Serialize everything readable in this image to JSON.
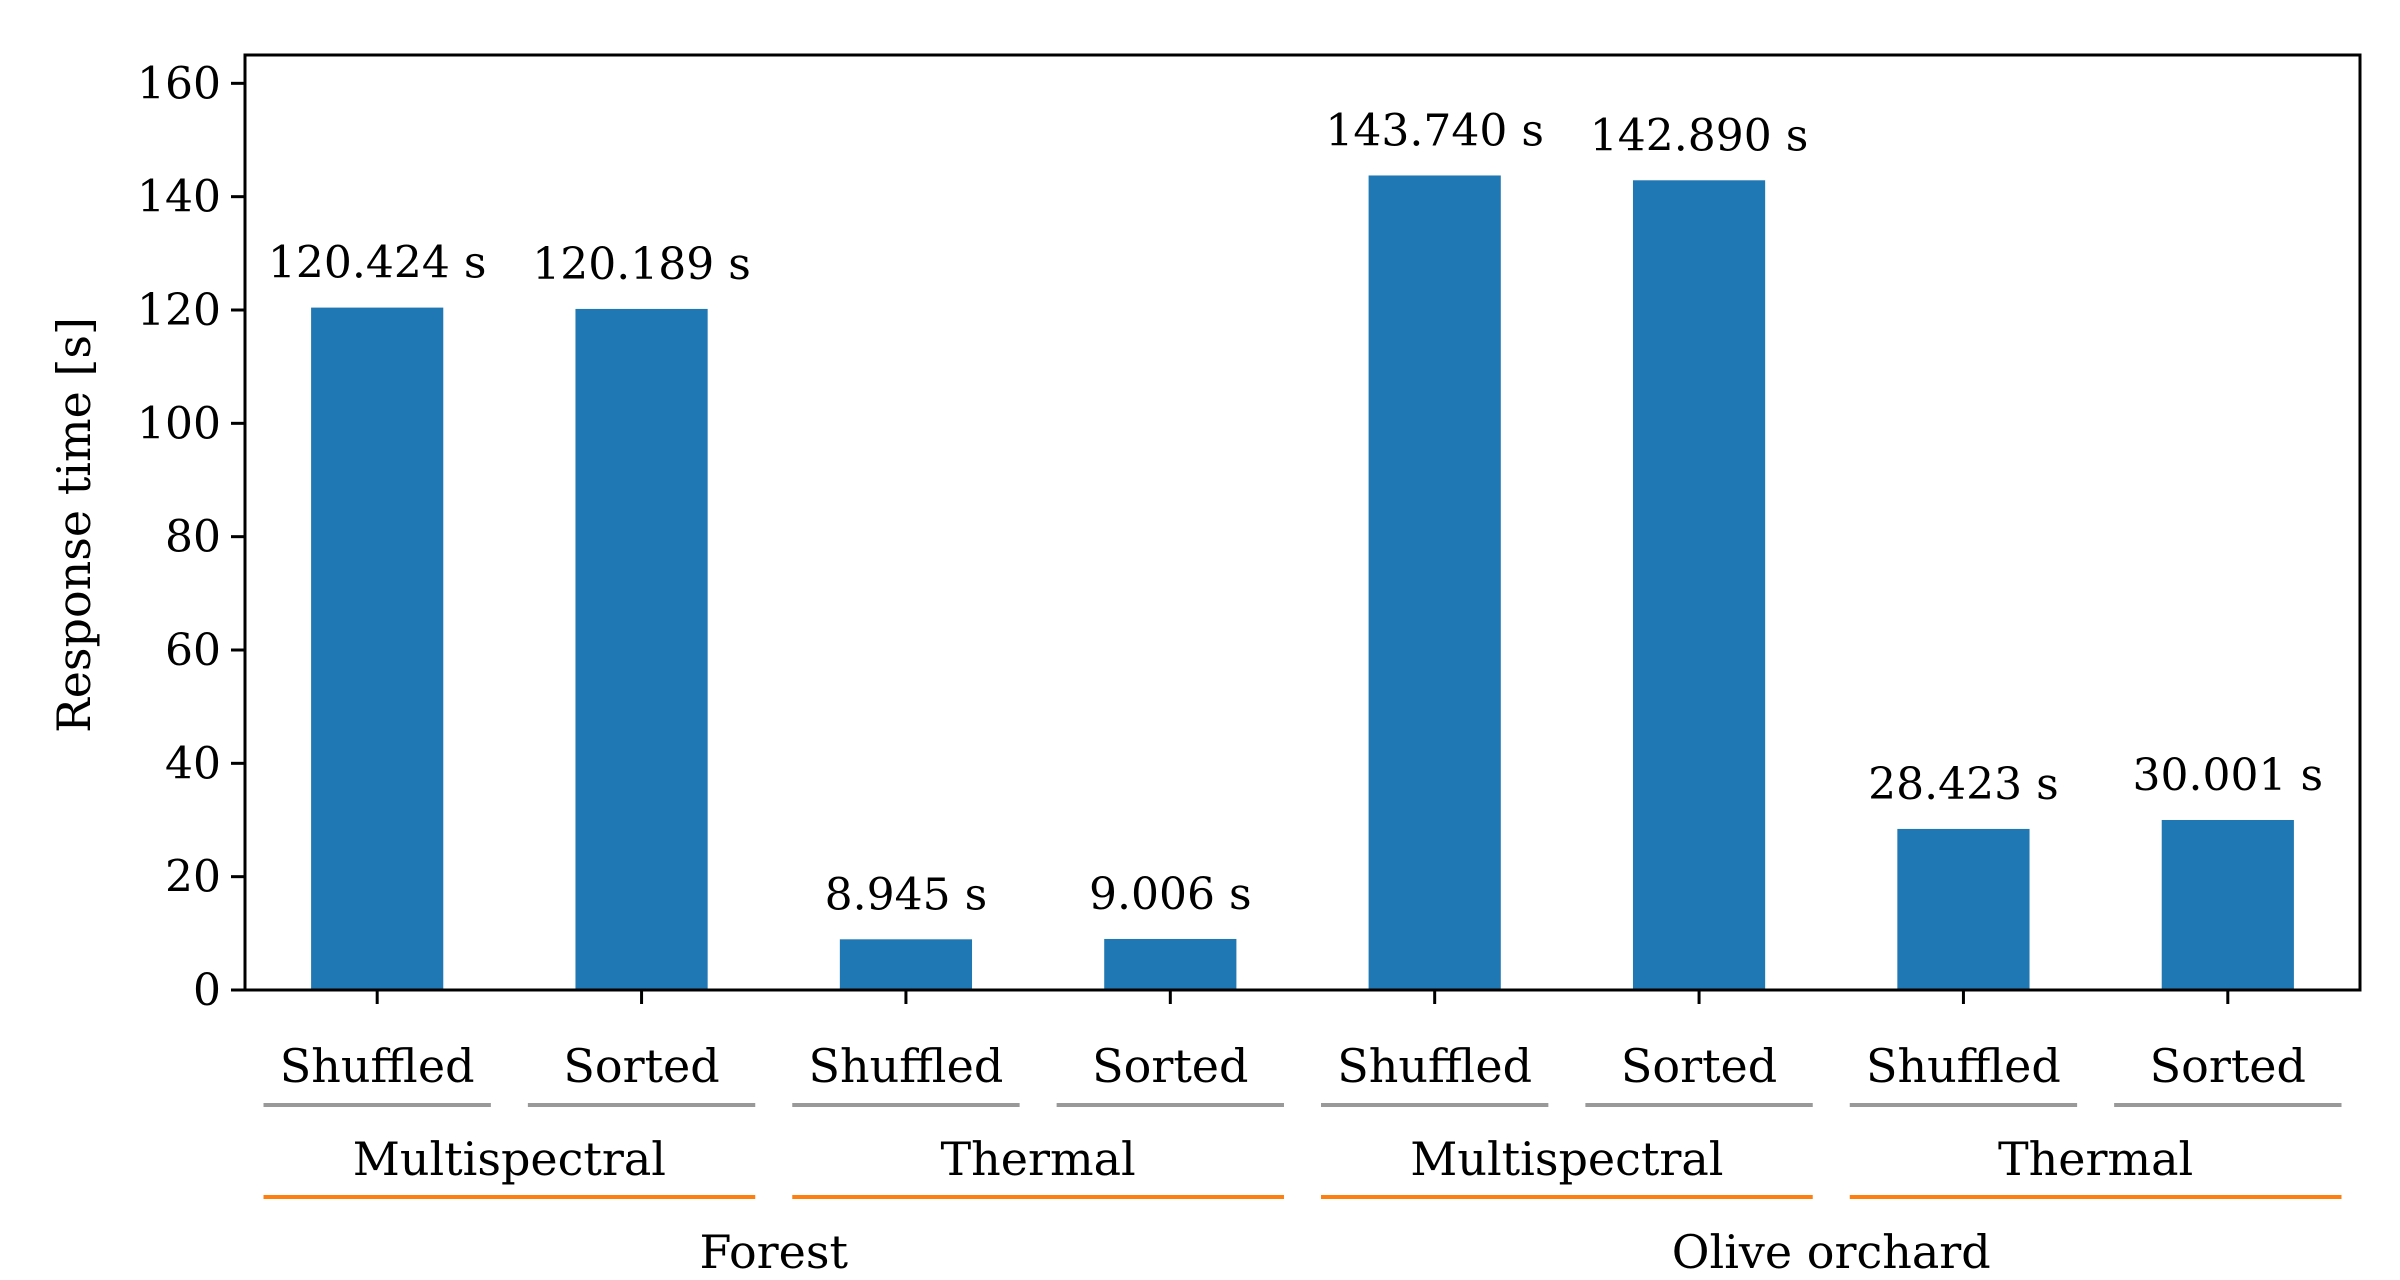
{
  "chart_data": {
    "type": "bar",
    "ylabel": "Response time [s]",
    "ylim": [
      0,
      165
    ],
    "yticks": [
      0,
      20,
      40,
      60,
      80,
      100,
      120,
      140,
      160
    ],
    "grid": false,
    "categories": [
      "Shuffled",
      "Sorted",
      "Shuffled",
      "Sorted",
      "Shuffled",
      "Sorted",
      "Shuffled",
      "Sorted"
    ],
    "values": [
      120.424,
      120.189,
      8.945,
      9.006,
      143.74,
      142.89,
      28.423,
      30.001
    ],
    "value_labels": [
      "120.424 s",
      "120.189 s",
      "8.945 s",
      "9.006 s",
      "143.740 s",
      "142.890 s",
      "28.423 s",
      "30.001 s"
    ],
    "sensor_groups": [
      "Multispectral",
      "Thermal",
      "Multispectral",
      "Thermal"
    ],
    "site_groups": [
      "Forest",
      "Olive orchard"
    ],
    "colors": {
      "bar": "#1f77b4",
      "order_underline": "#999999",
      "sensor_underline": "#ff7f0e"
    }
  }
}
